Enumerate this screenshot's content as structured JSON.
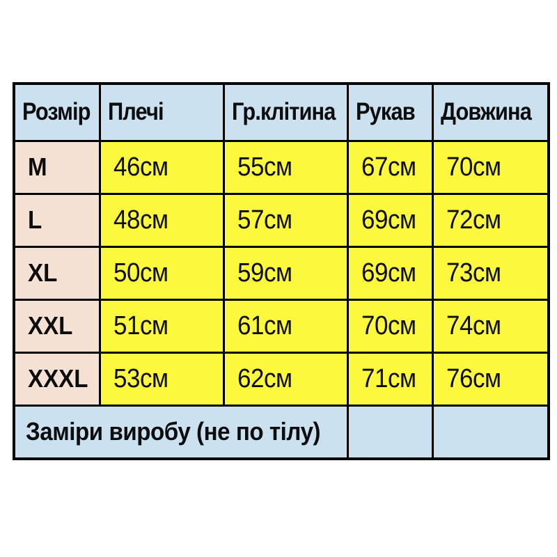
{
  "page": {
    "background_color": "#ffffff"
  },
  "chart_data": {
    "type": "table",
    "title": "",
    "columns": [
      "Розмір",
      "Плечі",
      "Гр.клітина",
      "Рукав",
      "Довжина"
    ],
    "rows": [
      [
        "M",
        "46см",
        "55см",
        "67см",
        "70см"
      ],
      [
        "L",
        "48см",
        "57см",
        "69см",
        "72см"
      ],
      [
        "XL",
        "50см",
        "59см",
        "69см",
        "73см"
      ],
      [
        "XXL",
        "51см",
        "61см",
        "70см",
        "74см"
      ],
      [
        "XXXL",
        "53см",
        "62см",
        "71см",
        "76см"
      ]
    ],
    "footer": "Заміри виробу (не по тілу)",
    "colors": {
      "header_bg": "#cbe1f0",
      "size_col_bg": "#f5e1d4",
      "value_bg": "#fbf83e",
      "footer_bg": "#cbe1f0",
      "border": "#000000",
      "text": "#0d0d0d"
    },
    "layout_hints": {
      "grid": "on",
      "footer_colspan": 3,
      "text_align": "left"
    }
  }
}
